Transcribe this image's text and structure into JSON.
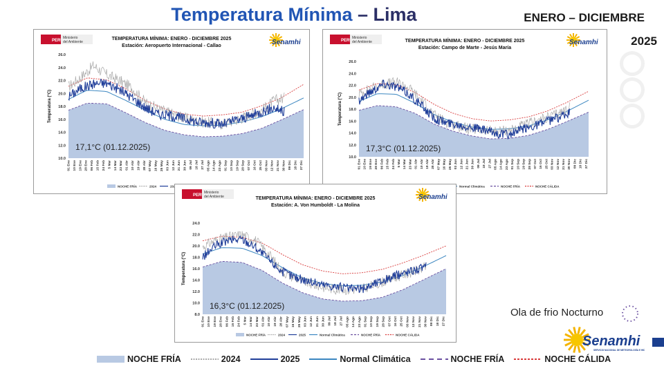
{
  "header": {
    "title_part1": "Temperatura Mínima",
    "title_part2": "– Lima",
    "period": "ENERO – DICIEMBRE",
    "year": "2025"
  },
  "logos": {
    "peru_tag": "PERÚ",
    "ministry_line1": "Ministerio",
    "ministry_line2": "del Ambiente",
    "senamhi": "Senamhi",
    "senamhi_caption": "SERVICIO NACIONAL DE METEOROLOGÍA E HIDROLOGÍA DEL PERÚ"
  },
  "colors": {
    "noche_fria_fill": "#b8c9e3",
    "y2024": "#a8a8a8",
    "y2025": "#1f3d99",
    "normal": "#3a86c0",
    "fria_line": "#6a4fa0",
    "calida_line": "#d93a3a",
    "brand_blue": "#2155b4"
  },
  "side": {
    "ola_label": "Ola de frio  Nocturno"
  },
  "legend": [
    {
      "key": "fill",
      "label": "NOCHE FRÍA"
    },
    {
      "key": "y2024",
      "label": "2024"
    },
    {
      "key": "y2025",
      "label": "2025"
    },
    {
      "key": "normal",
      "label": "Normal Climática"
    },
    {
      "key": "fria",
      "label": "NOCHE FRÍA"
    },
    {
      "key": "calida",
      "label": "NOCHE CÁLIDA"
    }
  ],
  "chart_data": [
    {
      "type": "line",
      "title": "TEMPERATURA MÍNIMA:  ENERO - DICIEMBRE 2025",
      "subtitle": "Estación: Aeropuerto Internacional - Callao",
      "ylabel": "Temperatura (°C)",
      "ylim": [
        10,
        26
      ],
      "yticks": [
        "10.0",
        "12.0",
        "14.0",
        "16.0",
        "18.0",
        "20.0",
        "22.0",
        "24.0",
        "26.0"
      ],
      "x_labels": [
        "01 Ene",
        "10 Ene",
        "19 Ene",
        "28 Ene",
        "06 Feb",
        "15 Feb",
        "24 Feb",
        "5 Mar",
        "14 Mar",
        "23 Mar",
        "01 Abr",
        "10 Abr",
        "19 Abr",
        "28 Abr",
        "07 May",
        "16 May",
        "25 May",
        "03 Jun",
        "12 Jun",
        "21 Jun",
        "30 Jun",
        "09 Jul",
        "18 Jul",
        "27 Jul",
        "05 Ago",
        "14 Ago",
        "23 Ago",
        "01 Sep",
        "10 Sep",
        "19 Sep",
        "28 Sep",
        "07 Oct",
        "16 Oct",
        "25 Oct",
        "03 Nov",
        "12 Nov",
        "21 Nov",
        "30 Nov",
        "09 Dic",
        "18 Dic",
        "27 Dic"
      ],
      "annotation": "17,1°C (01.12.2025)",
      "series": [
        {
          "key": "noche_fria_area",
          "x": [
            1,
            30,
            60,
            90,
            120,
            150,
            180,
            210,
            240,
            270,
            300,
            330,
            365
          ],
          "values": [
            17.4,
            18.5,
            18.4,
            17.0,
            15.5,
            14.3,
            13.6,
            13.3,
            13.4,
            13.8,
            14.6,
            15.9,
            17.5
          ]
        },
        {
          "key": "noche_calida",
          "x": [
            1,
            30,
            60,
            90,
            120,
            150,
            180,
            210,
            240,
            270,
            300,
            330,
            365
          ],
          "values": [
            21.1,
            22.4,
            22.1,
            20.7,
            18.9,
            17.6,
            16.8,
            16.5,
            16.7,
            17.1,
            18.1,
            19.3,
            21.4
          ]
        },
        {
          "key": "normal",
          "x": [
            1,
            30,
            60,
            90,
            120,
            150,
            180,
            210,
            240,
            270,
            300,
            330,
            365
          ],
          "values": [
            19.1,
            20.5,
            20.3,
            18.9,
            17.4,
            16.0,
            15.2,
            15.0,
            15.1,
            15.6,
            16.4,
            17.6,
            19.3
          ]
        },
        {
          "key": "y2024",
          "x": [
            1,
            20,
            40,
            60,
            80,
            100,
            120,
            140,
            160,
            180,
            200,
            220,
            240,
            260,
            280,
            300,
            320,
            335
          ],
          "values": [
            21.0,
            22.5,
            24.3,
            22.9,
            22.0,
            20.8,
            18.6,
            17.6,
            16.9,
            16.2,
            15.7,
            15.5,
            15.3,
            15.9,
            16.6,
            17.4,
            18.9,
            19.3
          ]
        },
        {
          "key": "y2025",
          "x": [
            1,
            20,
            40,
            60,
            80,
            100,
            120,
            140,
            160,
            180,
            200,
            220,
            240,
            260,
            280,
            300,
            320,
            335
          ],
          "values": [
            19.5,
            20.8,
            21.5,
            21.6,
            20.6,
            19.3,
            17.8,
            16.8,
            16.6,
            16.1,
            15.6,
            15.5,
            15.2,
            15.9,
            16.4,
            17.2,
            17.8,
            17.1
          ]
        }
      ]
    },
    {
      "type": "line",
      "title": "TEMPERATURA MÍNIMA:  ENERO - DICIEMBRE 2025",
      "subtitle": "Estación: Campo de Marte - Jesús María",
      "ylabel": "Temperatura (°C)",
      "ylim": [
        10,
        26
      ],
      "yticks": [
        "10.0",
        "12.0",
        "14.0",
        "16.0",
        "18.0",
        "20.0",
        "22.0",
        "24.0",
        "26.0"
      ],
      "x_labels": [
        "01 Ene",
        "10 Ene",
        "19 Ene",
        "28 Ene",
        "06 Feb",
        "15 Feb",
        "24 Feb",
        "5 Mar",
        "14 Mar",
        "23 Mar",
        "01 Abr",
        "10 Abr",
        "19 Abr",
        "28 Abr",
        "07 May",
        "16 May",
        "25 May",
        "03 Jun",
        "12 Jun",
        "21 Jun",
        "30 Jun",
        "09 Jul",
        "18 Jul",
        "27 Jul",
        "05 Ago",
        "14 Ago",
        "23 Ago",
        "01 Sep",
        "10 Sep",
        "19 Sep",
        "28 Sep",
        "07 Oct",
        "16 Oct",
        "25 Oct",
        "03 Nov",
        "12 Nov",
        "21 Nov",
        "30 Nov",
        "09 Dic",
        "18 Dic",
        "27 Dic"
      ],
      "annotation": "17,3°C (01.12.2025)",
      "series": [
        {
          "key": "noche_fria_area",
          "x": [
            1,
            30,
            60,
            90,
            120,
            150,
            180,
            210,
            240,
            270,
            300,
            330,
            365
          ],
          "values": [
            17.8,
            18.6,
            18.4,
            17.3,
            15.5,
            14.3,
            13.5,
            13.0,
            13.1,
            13.6,
            14.6,
            15.9,
            17.5
          ]
        },
        {
          "key": "noche_calida",
          "x": [
            1,
            30,
            60,
            90,
            120,
            150,
            180,
            210,
            240,
            270,
            300,
            330,
            365
          ],
          "values": [
            21.2,
            22.3,
            22.1,
            20.8,
            18.8,
            17.3,
            16.4,
            16.0,
            16.2,
            16.7,
            17.7,
            19.1,
            21.0
          ]
        },
        {
          "key": "normal",
          "x": [
            1,
            30,
            60,
            90,
            120,
            150,
            180,
            210,
            240,
            270,
            300,
            330,
            365
          ],
          "values": [
            19.3,
            20.6,
            20.5,
            19.0,
            17.1,
            15.8,
            15.0,
            14.6,
            14.7,
            15.2,
            16.2,
            17.6,
            19.5
          ]
        },
        {
          "key": "y2024",
          "x": [
            1,
            20,
            40,
            60,
            80,
            100,
            120,
            140,
            160,
            180,
            200,
            220,
            240,
            260,
            280,
            300,
            320,
            335
          ],
          "values": [
            20.5,
            21.5,
            22.2,
            22.5,
            21.6,
            19.5,
            17.0,
            15.8,
            15.1,
            14.6,
            14.4,
            14.3,
            14.5,
            15.2,
            15.9,
            16.6,
            17.4,
            18.3
          ]
        },
        {
          "key": "y2025",
          "x": [
            1,
            20,
            40,
            60,
            80,
            100,
            120,
            140,
            160,
            180,
            200,
            220,
            240,
            260,
            280,
            300,
            320,
            335
          ],
          "values": [
            19.5,
            21.0,
            22.3,
            21.8,
            20.5,
            18.6,
            16.5,
            15.7,
            15.4,
            15.0,
            14.4,
            13.9,
            13.7,
            14.6,
            15.3,
            16.0,
            16.7,
            17.3
          ]
        }
      ]
    },
    {
      "type": "line",
      "title": "TEMPERATURA MÍNIMA: ENERO -  DICIEMBRE 2025",
      "subtitle": "Estación: A. Von Humboldt - La Molina",
      "ylabel": "Temperatura (°C)",
      "ylim": [
        8,
        24
      ],
      "yticks": [
        "8.0",
        "10.0",
        "12.0",
        "14.0",
        "16.0",
        "18.0",
        "20.0",
        "22.0",
        "24.0"
      ],
      "x_labels": [
        "01 Ene",
        "10 Ene",
        "19 Ene",
        "28 Ene",
        "06 Feb",
        "15 Feb",
        "24 Feb",
        "5 Mar",
        "14 Mar",
        "23 Mar",
        "01 Abr",
        "10 Abr",
        "19 Abr",
        "28 Abr",
        "07 May",
        "16 May",
        "25 May",
        "03 Jun",
        "12 Jun",
        "21 Jun",
        "30 Jun",
        "09 Jul",
        "18 Jul",
        "27 Jul",
        "05 Ago",
        "14 Ago",
        "23 Ago",
        "01 Sep",
        "10 Sep",
        "19 Sep",
        "28 Sep",
        "07 Oct",
        "16 Oct",
        "25 Oct",
        "03 Nov",
        "12 Nov",
        "21 Nov",
        "30 Nov",
        "09 Dic",
        "18 Dic",
        "27 Dic"
      ],
      "annotation": "16,3°C (01.12.2025)",
      "series": [
        {
          "key": "noche_fria_area",
          "x": [
            1,
            30,
            60,
            90,
            120,
            150,
            180,
            210,
            240,
            270,
            300,
            330,
            365
          ],
          "values": [
            16.3,
            17.3,
            17.1,
            15.7,
            13.5,
            11.8,
            10.7,
            10.3,
            10.4,
            11.0,
            12.3,
            14.0,
            16.0
          ]
        },
        {
          "key": "noche_calida",
          "x": [
            1,
            30,
            60,
            90,
            120,
            150,
            180,
            210,
            240,
            270,
            300,
            330,
            365
          ],
          "values": [
            20.9,
            21.7,
            21.5,
            20.5,
            18.5,
            16.7,
            15.6,
            15.1,
            15.3,
            15.9,
            17.0,
            18.3,
            20.0
          ]
        },
        {
          "key": "normal",
          "x": [
            1,
            30,
            60,
            90,
            120,
            150,
            180,
            210,
            240,
            270,
            300,
            330,
            365
          ],
          "values": [
            18.6,
            19.7,
            19.6,
            18.3,
            16.2,
            14.4,
            13.4,
            13.0,
            13.1,
            13.7,
            14.8,
            16.3,
            18.3
          ]
        },
        {
          "key": "y2024",
          "x": [
            1,
            20,
            40,
            60,
            80,
            100,
            120,
            140,
            160,
            180,
            200,
            220,
            240,
            260,
            280,
            300,
            320,
            335
          ],
          "values": [
            19.8,
            21.0,
            21.6,
            22.0,
            21.0,
            18.6,
            15.5,
            14.3,
            13.4,
            12.8,
            12.4,
            12.3,
            12.5,
            13.3,
            14.1,
            14.9,
            15.6,
            16.3
          ]
        },
        {
          "key": "y2025",
          "x": [
            1,
            20,
            40,
            60,
            80,
            100,
            120,
            140,
            160,
            180,
            200,
            220,
            240,
            260,
            280,
            300,
            320,
            335
          ],
          "values": [
            18.0,
            20.0,
            21.0,
            21.2,
            19.8,
            17.6,
            15.5,
            14.5,
            13.8,
            13.2,
            12.9,
            12.5,
            12.4,
            13.5,
            14.3,
            15.2,
            15.9,
            16.3
          ]
        }
      ]
    }
  ]
}
